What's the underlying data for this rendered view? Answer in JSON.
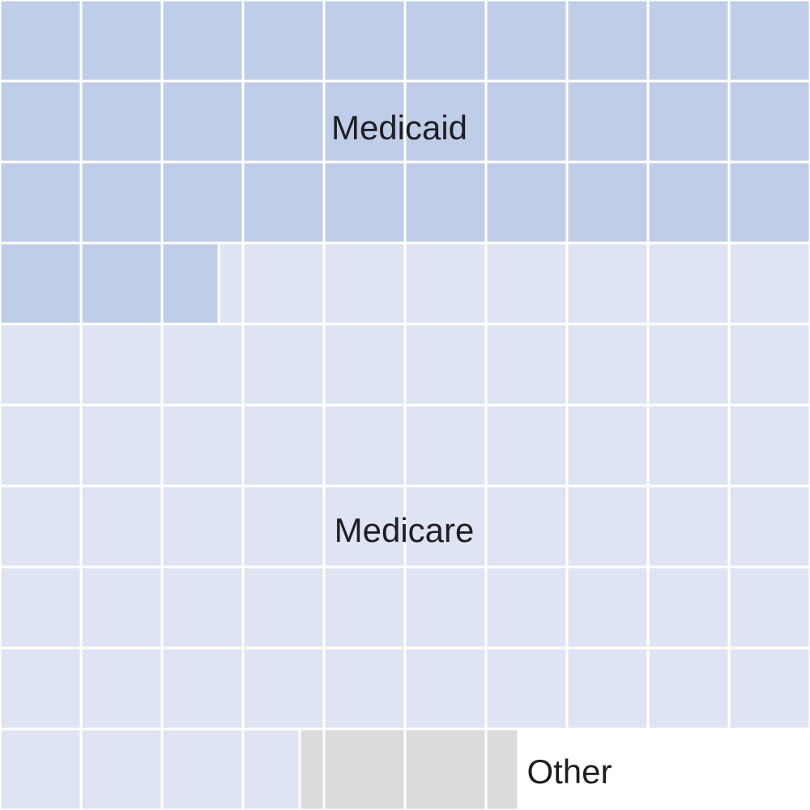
{
  "chart_data": {
    "type": "waffle",
    "grid": {
      "rows": 10,
      "cols": 10
    },
    "series": [
      {
        "name": "Medicaid",
        "value": 32.7,
        "color": "#c0cde8"
      },
      {
        "name": "Medicare",
        "value": 61.0,
        "color": "#dfe4f2"
      },
      {
        "name": "Other",
        "value": 2.7,
        "color": "#dbdbdb"
      }
    ],
    "title": "",
    "legend": "none"
  }
}
